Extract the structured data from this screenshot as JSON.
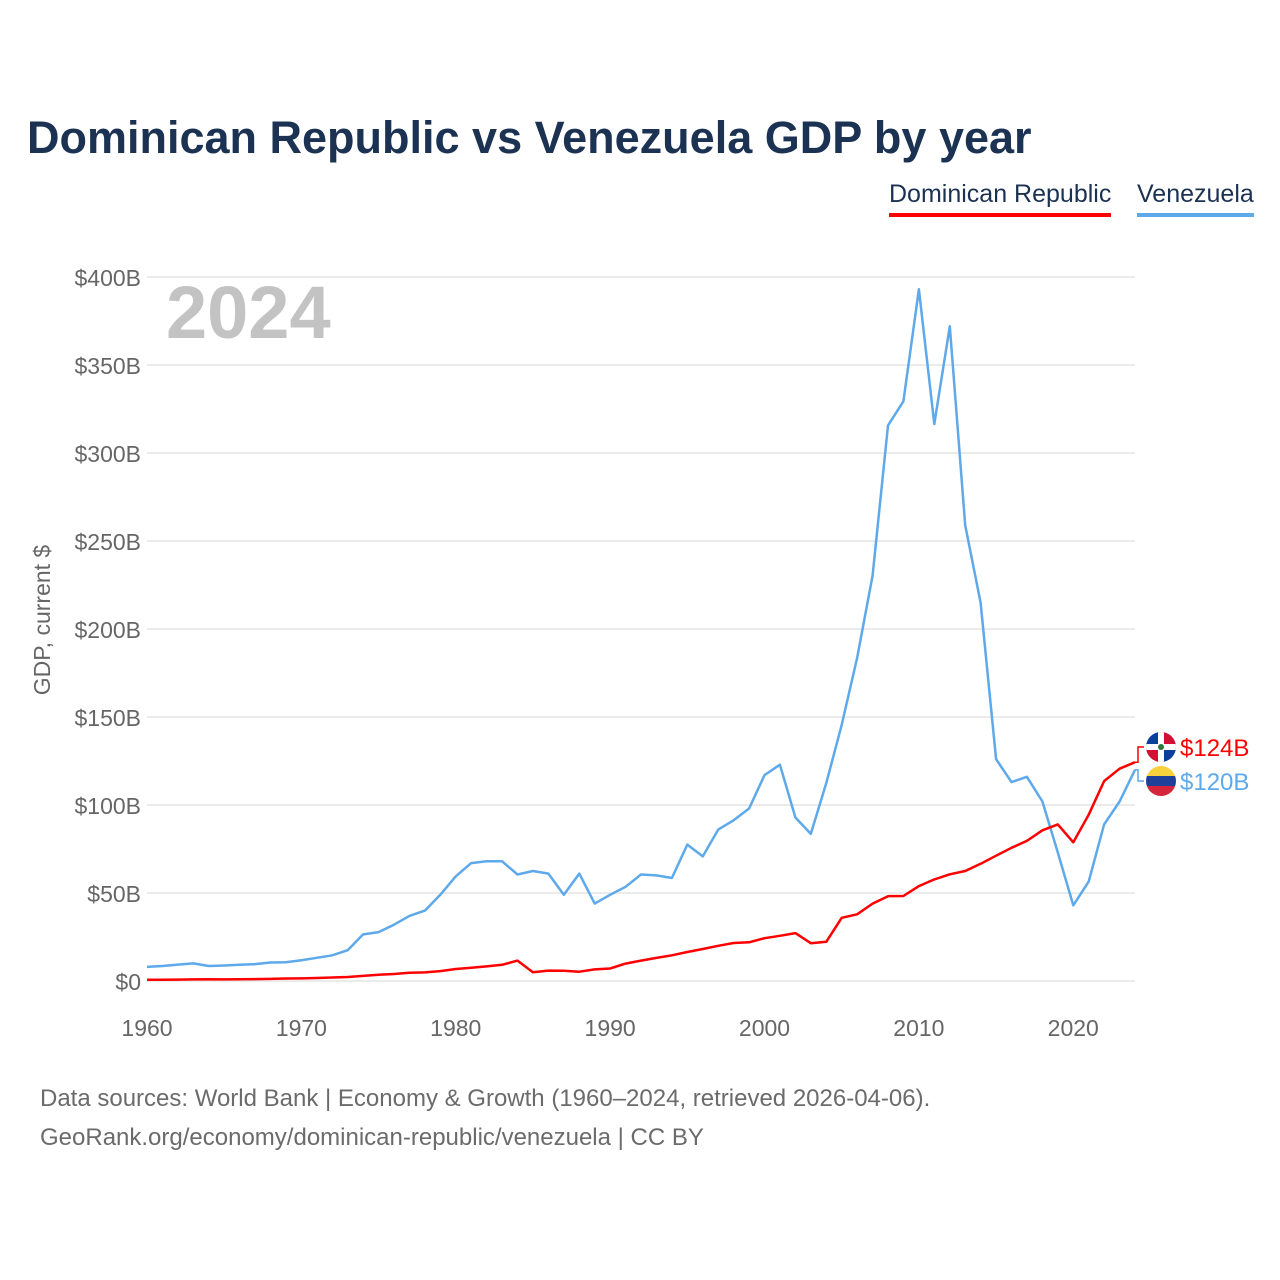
{
  "chart_data": {
    "type": "line",
    "title": "Dominican Republic vs Venezuela GDP by year",
    "ylabel": "GDP, current $",
    "xlabel": "",
    "year_label": "2024",
    "xlim": [
      1960,
      2024
    ],
    "ylim": [
      0,
      400
    ],
    "x_ticks": [
      1960,
      1970,
      1980,
      1990,
      2000,
      2010,
      2020
    ],
    "y_ticks": [
      0,
      50,
      100,
      150,
      200,
      250,
      300,
      350,
      400
    ],
    "y_tick_labels": [
      "$0",
      "$50B",
      "$100B",
      "$150B",
      "$200B",
      "$250B",
      "$300B",
      "$350B",
      "$400B"
    ],
    "grid": true,
    "legend_position": "top-right",
    "x": [
      1960,
      1961,
      1962,
      1963,
      1964,
      1965,
      1966,
      1967,
      1968,
      1969,
      1970,
      1971,
      1972,
      1973,
      1974,
      1975,
      1976,
      1977,
      1978,
      1979,
      1980,
      1981,
      1982,
      1983,
      1984,
      1985,
      1986,
      1987,
      1988,
      1989,
      1990,
      1991,
      1992,
      1993,
      1994,
      1995,
      1996,
      1997,
      1998,
      1999,
      2000,
      2001,
      2002,
      2003,
      2004,
      2005,
      2006,
      2007,
      2008,
      2009,
      2010,
      2011,
      2012,
      2013,
      2014,
      2015,
      2016,
      2017,
      2018,
      2019,
      2020,
      2021,
      2022,
      2023,
      2024
    ],
    "series": [
      {
        "name": "Dominican Republic",
        "color": "#ff0000",
        "end_label": "$124B",
        "values": [
          0.7,
          0.7,
          0.8,
          0.9,
          1.0,
          0.9,
          1.0,
          1.1,
          1.2,
          1.4,
          1.5,
          1.7,
          2.0,
          2.3,
          2.9,
          3.6,
          4.0,
          4.7,
          4.9,
          5.6,
          6.8,
          7.5,
          8.3,
          9.2,
          11.6,
          5.0,
          5.9,
          5.8,
          5.3,
          6.6,
          7.1,
          9.9,
          11.6,
          13.1,
          14.6,
          16.5,
          18.2,
          20.0,
          21.6,
          22.0,
          24.3,
          25.7,
          27.2,
          21.5,
          22.3,
          35.9,
          37.9,
          44.0,
          48.2,
          48.3,
          53.9,
          57.7,
          60.6,
          62.5,
          66.6,
          71.2,
          75.7,
          79.6,
          85.6,
          89.0,
          78.8,
          94.5,
          113.6,
          120.6,
          124.3
        ]
      },
      {
        "name": "Venezuela",
        "color": "#5ea9ea",
        "end_label": "$120B",
        "values": [
          8.0,
          8.5,
          9.3,
          10.0,
          8.5,
          8.8,
          9.2,
          9.6,
          10.5,
          10.6,
          11.8,
          13.2,
          14.6,
          17.5,
          26.5,
          27.8,
          32.0,
          37.0,
          40.0,
          49.0,
          59.5,
          67.0,
          68.0,
          68.0,
          60.5,
          62.5,
          61.0,
          49.0,
          61.0,
          44.0,
          49.0,
          53.5,
          60.5,
          60.0,
          58.5,
          77.5,
          70.8,
          86.0,
          91.3,
          98.0,
          117.0,
          122.9,
          92.9,
          83.6,
          112.5,
          145.5,
          183.5,
          230.4,
          315.6,
          329.4,
          393.0,
          316.5,
          372.0,
          258.9,
          215.0,
          126.0,
          113.0,
          116.0,
          102.0,
          73.0,
          43.0,
          56.5,
          89.0,
          102.0,
          120.0
        ]
      }
    ]
  },
  "footer": {
    "line1": "Data sources: World Bank | Economy & Growth (1960–2024, retrieved 2026-04-06).",
    "line2": "GeoRank.org/economy/dominican-republic/venezuela | CC BY"
  }
}
